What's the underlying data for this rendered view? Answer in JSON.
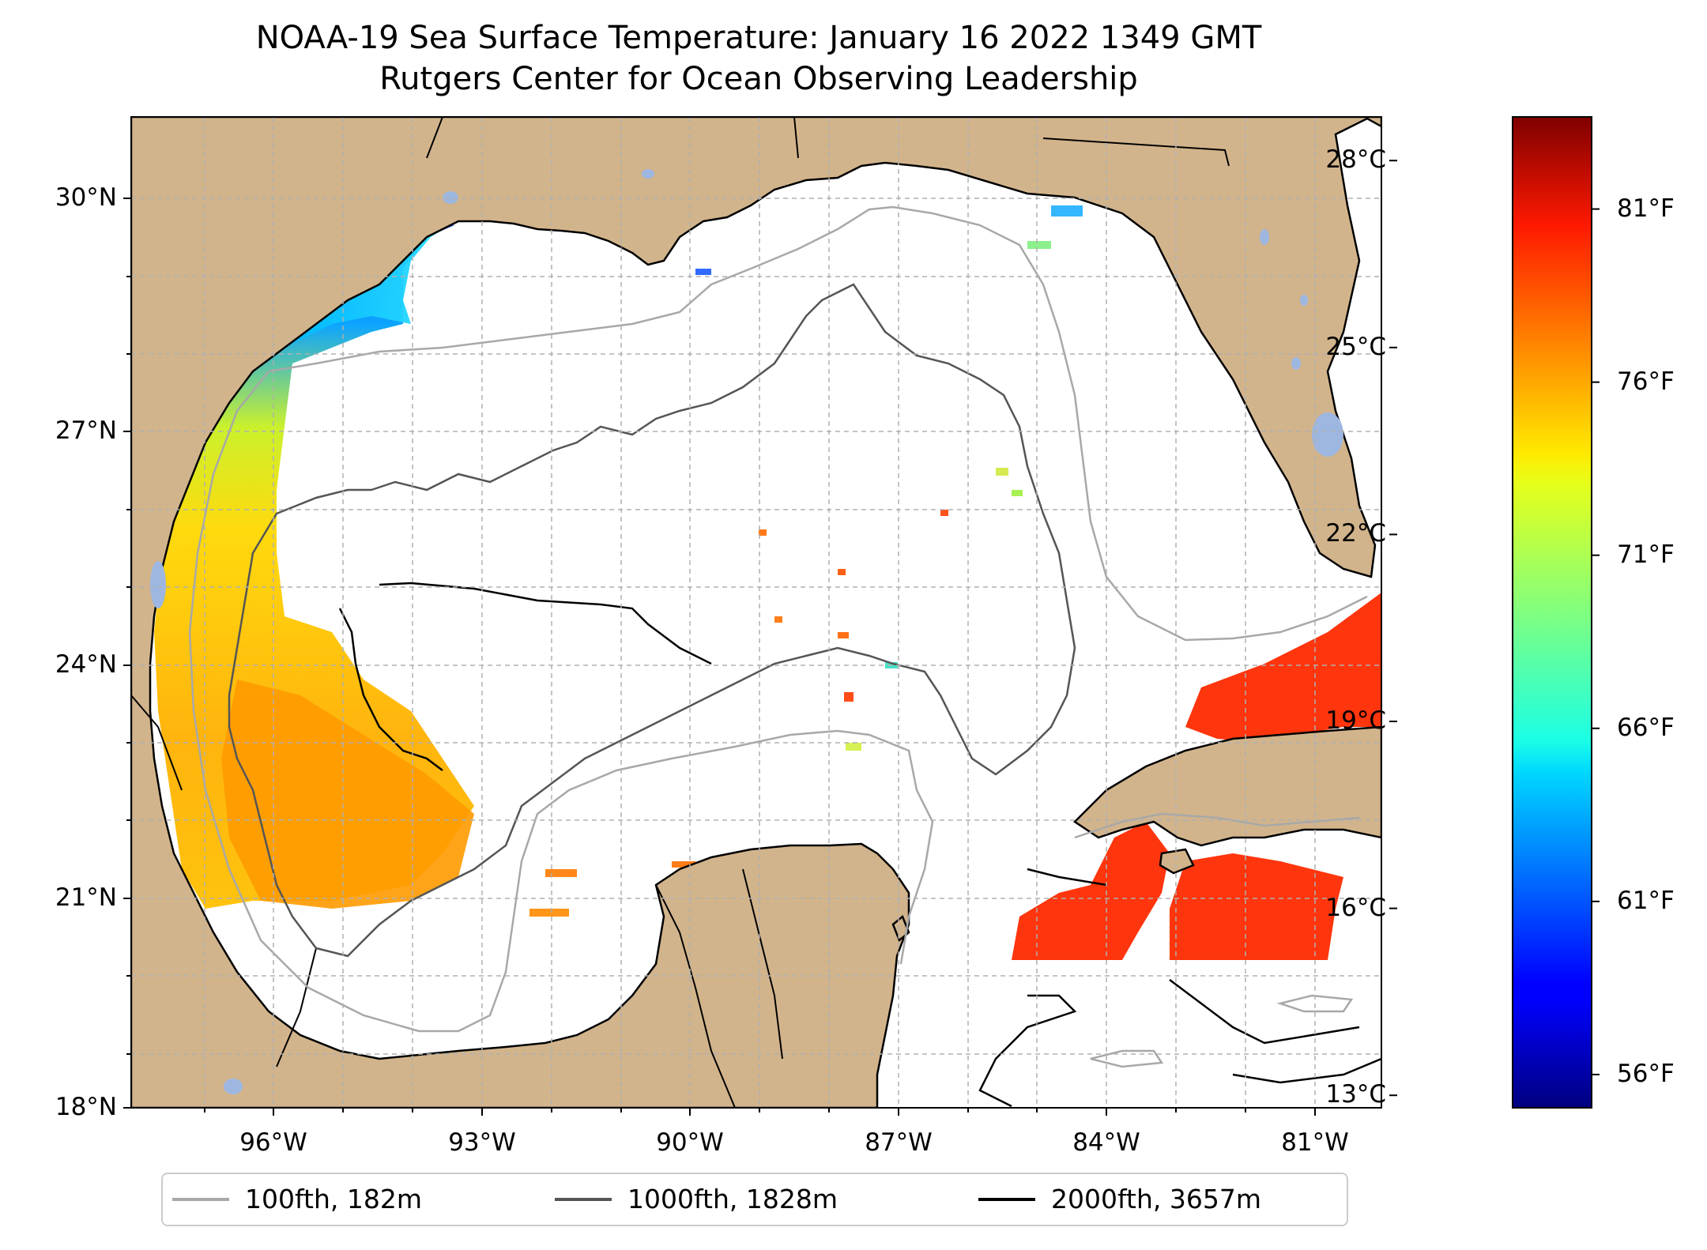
{
  "title": {
    "line1": "NOAA-19 Sea Surface Temperature: January 16 2022 1349 GMT",
    "line2": "Rutgers Center for Ocean Observing Leadership"
  },
  "map": {
    "lat_ticks": [
      "30°N",
      "27°N",
      "24°N",
      "21°N",
      "18°N"
    ],
    "lon_ticks": [
      "96°W",
      "93°W",
      "90°W",
      "87°W",
      "84°W",
      "81°W"
    ],
    "colors": {
      "land": "#d2b48c",
      "lakes": "#9db7e0",
      "ocean": "#ffffff",
      "grid": "#b0b0b0",
      "coast": "#000000"
    }
  },
  "colorbar": {
    "celsius_labels": [
      "28°C",
      "25°C",
      "22°C",
      "19°C",
      "16°C",
      "13°C"
    ],
    "fahrenheit_labels": [
      "81°F",
      "76°F",
      "71°F",
      "66°F",
      "61°F",
      "56°F"
    ],
    "celsius_values": [
      28,
      25,
      22,
      19,
      16,
      13
    ],
    "fahrenheit_values": [
      81,
      76,
      71,
      66,
      61,
      56
    ],
    "range_c": [
      12.8,
      28.7
    ],
    "colormap": "jet"
  },
  "legend": {
    "items": [
      {
        "label": "100fth, 182m",
        "color": "#a8a8a8"
      },
      {
        "label": "1000fth, 1828m",
        "color": "#555555"
      },
      {
        "label": "2000fth, 3657m",
        "color": "#000000"
      }
    ]
  }
}
